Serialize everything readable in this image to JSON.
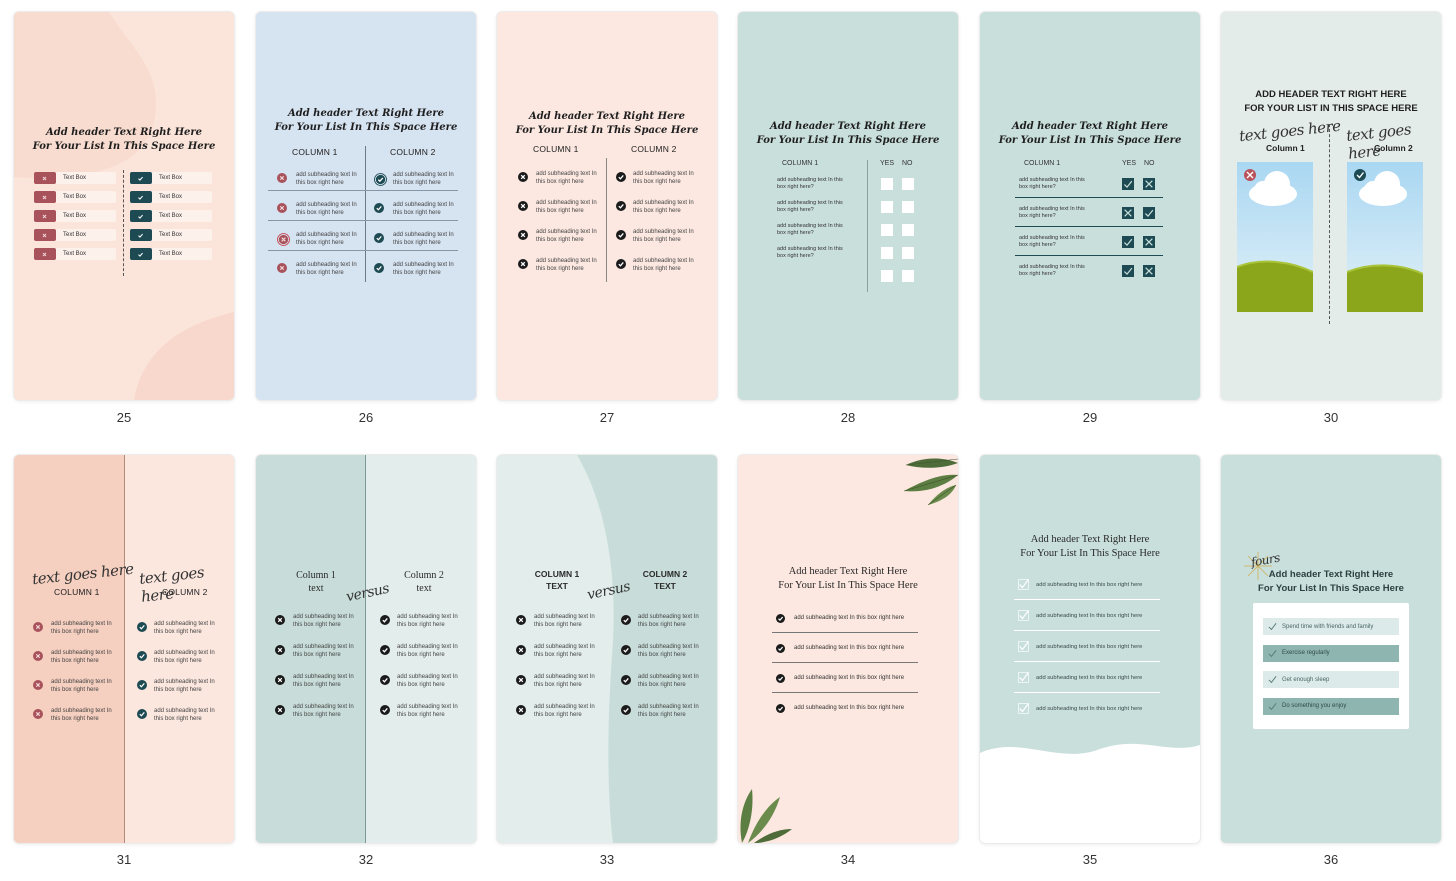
{
  "colors": {
    "p25": "#fbe4da",
    "p26": "#d6e3f1",
    "p27": "#fce8e1",
    "p28": "#c9dfdc",
    "p29": "#c9dfdc",
    "p30": "#e4ecea",
    "p31a": "#f5cfbf",
    "p31b": "#fce7df",
    "p32a": "#c8ddd9",
    "p32b": "#e3eeec",
    "p33a": "#e3eeec",
    "p33b": "#c8ddd9",
    "p34": "#fce8e0",
    "p35": "#c9dfdc",
    "p36": "#c9dfdc",
    "teal_dark": "#1d4a53",
    "red_x": "#a8525b"
  },
  "pages": [
    {
      "num": "25",
      "header1": "Add header Text Right Here",
      "header2": "For Your List In This Space Here",
      "box_label": "Text Box"
    },
    {
      "num": "26",
      "header1": "Add header Text Right Here",
      "header2": "For Your List In This Space Here",
      "col1": "COLUMN 1",
      "col2": "COLUMN 2",
      "line1": "add subheading text In",
      "line2": "this box right here"
    },
    {
      "num": "27",
      "header1": "Add header Text Right Here",
      "header2": "For Your List In This Space Here",
      "col1": "COLUMN 1",
      "col2": "COLUMN 2",
      "line1": "add subheading text In",
      "line2": "this box right here"
    },
    {
      "num": "28",
      "header1": "Add header Text Right Here",
      "header2": "For Your List In This Space Here",
      "col1": "COLUMN 1",
      "yes": "YES",
      "no": "NO",
      "line1": "add subheading text In this",
      "line2": "box right here?"
    },
    {
      "num": "29",
      "header1": "Add header Text Right Here",
      "header2": "For Your List In This Space Here",
      "col1": "COLUMN 1",
      "yes": "YES",
      "no": "NO",
      "line1": "add subheading text In this",
      "line2": "box right here?"
    },
    {
      "num": "30",
      "header1": "ADD HEADER TEXT RIGHT HERE",
      "header2": "FOR YOUR LIST IN THIS SPACE HERE",
      "script": "text goes here",
      "col1": "Column 1",
      "col2": "Column 2"
    },
    {
      "num": "31",
      "script": "text goes here",
      "col1": "COLUMN 1",
      "col2": "COLUMN 2",
      "line1": "add subheading text In",
      "line2": "this box right here"
    },
    {
      "num": "32",
      "col1a": "Column 1",
      "col1b": "text",
      "col2a": "Column 2",
      "col2b": "text",
      "versus": "versus",
      "line1": "add subheading text In",
      "line2": "this box right here"
    },
    {
      "num": "33",
      "col1a": "COLUMN 1",
      "col1b": "TEXT",
      "col2a": "COLUMN 2",
      "col2b": "TEXT",
      "versus": "versus",
      "line1": "add subheading text In",
      "line2": "this box right here"
    },
    {
      "num": "34",
      "header1": "Add header Text Right Here",
      "header2": "For Your List In This Space Here",
      "item": "add subheading text In this box right here"
    },
    {
      "num": "35",
      "header1": "Add header Text Right Here",
      "header2": "For Your List In This Space Here",
      "item": "add subheading text In this box right here"
    },
    {
      "num": "36",
      "script": "fours",
      "header1": "Add header Text Right Here",
      "header2": "For Your List In This Space Here",
      "items": [
        "Spend time with friends and family",
        "Exercise regularly",
        "Get enough sleep",
        "Do something you enjoy"
      ]
    }
  ]
}
